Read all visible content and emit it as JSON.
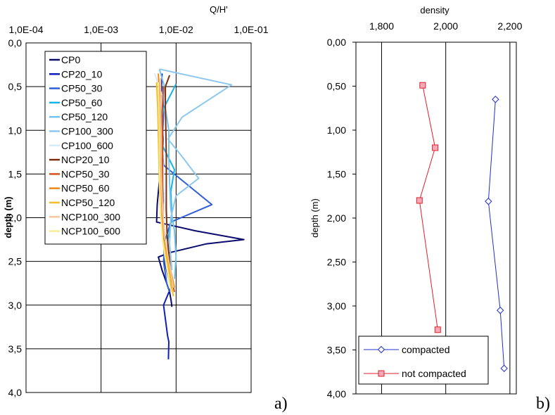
{
  "chart_data": [
    {
      "type": "line",
      "panel_letter": "a)",
      "xscale": "log",
      "xlabel": "Q/H'",
      "ylabel": "depth (m)",
      "xlim": [
        0.0001,
        0.1
      ],
      "ylim": [
        0,
        4
      ],
      "x_ticks": [
        "1,0E-04",
        "1,0E-03",
        "1,0E-02",
        "1,0E-01"
      ],
      "y_ticks": [
        "0,0",
        "0,5",
        "1,0",
        "1,5",
        "2,0",
        "2,5",
        "3,0",
        "3,5",
        "4,0"
      ],
      "legend_position": "top-left",
      "grid": true,
      "series": [
        {
          "name": "CP0",
          "color": "#0b0b6e",
          "points": [
            [
              0.0062,
              0.57
            ],
            [
              0.0062,
              0.85
            ],
            [
              0.0062,
              1.15
            ],
            [
              0.0061,
              1.5
            ],
            [
              0.0056,
              1.85
            ],
            [
              0.0055,
              2.05
            ],
            [
              0.018,
              2.15
            ],
            [
              0.08,
              2.25
            ],
            [
              0.025,
              2.3
            ],
            [
              0.0082,
              2.4
            ],
            [
              0.0058,
              2.45
            ],
            [
              0.0065,
              2.6
            ],
            [
              0.0075,
              2.75
            ],
            [
              0.0082,
              2.85
            ],
            [
              0.0086,
              2.95
            ],
            [
              0.0088,
              3.02
            ]
          ]
        },
        {
          "name": "CP20_10",
          "color": "#0f1fb8",
          "points": [
            [
              0.0065,
              0.35
            ],
            [
              0.0063,
              0.6
            ],
            [
              0.0065,
              0.9
            ],
            [
              0.0067,
              1.1
            ],
            [
              0.0065,
              1.45
            ],
            [
              0.0067,
              1.8
            ],
            [
              0.0065,
              2.0
            ],
            [
              0.0068,
              2.25
            ],
            [
              0.007,
              2.5
            ],
            [
              0.0085,
              2.8
            ],
            [
              0.0068,
              3.0
            ],
            [
              0.0073,
              3.2
            ],
            [
              0.0077,
              3.35
            ],
            [
              0.008,
              3.42
            ],
            [
              0.0079,
              3.62
            ]
          ]
        },
        {
          "name": "CP50_30",
          "color": "#2f5fd6",
          "points": [
            [
              0.0066,
              0.5
            ],
            [
              0.0068,
              0.8
            ],
            [
              0.0065,
              1.2
            ],
            [
              0.0068,
              1.4
            ],
            [
              0.03,
              1.85
            ],
            [
              0.0085,
              2.05
            ],
            [
              0.0072,
              2.25
            ],
            [
              0.0068,
              2.5
            ],
            [
              0.0075,
              2.75
            ],
            [
              0.0082,
              2.85
            ]
          ]
        },
        {
          "name": "CP50_60",
          "color": "#14b4e6",
          "points": [
            [
              0.01,
              0.47
            ],
            [
              0.0068,
              0.75
            ],
            [
              0.0058,
              1.05
            ],
            [
              0.0068,
              1.2
            ],
            [
              0.0095,
              1.45
            ],
            [
              0.0085,
              1.7
            ],
            [
              0.0088,
              2.0
            ],
            [
              0.0078,
              2.25
            ],
            [
              0.0075,
              2.45
            ],
            [
              0.0082,
              2.6
            ],
            [
              0.0085,
              2.75
            ]
          ]
        },
        {
          "name": "CP50_120",
          "color": "#74c4ee",
          "points": [
            [
              0.006,
              0.3
            ],
            [
              0.007,
              0.5
            ],
            [
              0.0072,
              0.75
            ],
            [
              0.008,
              1.0
            ],
            [
              0.008,
              1.3
            ],
            [
              0.0082,
              1.6
            ],
            [
              0.0085,
              1.9
            ],
            [
              0.0095,
              2.15
            ],
            [
              0.01,
              2.45
            ],
            [
              0.0095,
              2.7
            ]
          ]
        },
        {
          "name": "CP100_300",
          "color": "#8ec8ec",
          "points": [
            [
              0.006,
              0.3
            ],
            [
              0.055,
              0.48
            ],
            [
              0.012,
              0.85
            ],
            [
              0.0078,
              1.1
            ],
            [
              0.012,
              1.3
            ],
            [
              0.02,
              1.55
            ],
            [
              0.01,
              1.75
            ],
            [
              0.0085,
              2.0
            ],
            [
              0.0082,
              2.3
            ],
            [
              0.0088,
              2.6
            ]
          ]
        },
        {
          "name": "CP100_600",
          "color": "#d4ecf9",
          "points": [
            [
              0.0052,
              0.35
            ],
            [
              0.0065,
              0.6
            ],
            [
              0.0062,
              0.9
            ],
            [
              0.0065,
              1.2
            ],
            [
              0.0068,
              1.5
            ],
            [
              0.007,
              1.8
            ],
            [
              0.0075,
              2.1
            ],
            [
              0.0078,
              2.4
            ],
            [
              0.008,
              2.7
            ]
          ]
        },
        {
          "name": "NCP20_10",
          "color": "#7a3010",
          "points": [
            [
              0.0082,
              0.37
            ],
            [
              0.0072,
              0.5
            ],
            [
              0.0072,
              0.75
            ],
            [
              0.0073,
              1.0
            ],
            [
              0.0074,
              1.3
            ],
            [
              0.0074,
              1.6
            ],
            [
              0.0074,
              1.9
            ],
            [
              0.0076,
              2.2
            ],
            [
              0.0082,
              2.5
            ],
            [
              0.0086,
              2.75
            ]
          ]
        },
        {
          "name": "NCP50_30",
          "color": "#d4521c",
          "points": [
            [
              0.0068,
              0.5
            ],
            [
              0.0065,
              0.8
            ],
            [
              0.0066,
              1.1
            ],
            [
              0.0066,
              1.4
            ],
            [
              0.0066,
              1.7
            ],
            [
              0.0067,
              2.0
            ],
            [
              0.0072,
              2.3
            ],
            [
              0.0082,
              2.6
            ],
            [
              0.0095,
              2.85
            ]
          ]
        },
        {
          "name": "NCP50_60",
          "color": "#f08a18",
          "points": [
            [
              0.0058,
              0.35
            ],
            [
              0.006,
              0.6
            ],
            [
              0.0062,
              0.9
            ],
            [
              0.0062,
              1.2
            ],
            [
              0.0063,
              1.5
            ],
            [
              0.0064,
              1.8
            ],
            [
              0.0066,
              2.1
            ],
            [
              0.0075,
              2.4
            ],
            [
              0.0095,
              2.8
            ]
          ]
        },
        {
          "name": "NCP50_120",
          "color": "#f2be2a",
          "points": [
            [
              0.0055,
              0.45
            ],
            [
              0.0057,
              0.75
            ],
            [
              0.0058,
              1.05
            ],
            [
              0.0059,
              1.35
            ],
            [
              0.006,
              1.65
            ],
            [
              0.0062,
              1.95
            ],
            [
              0.0067,
              2.25
            ],
            [
              0.0078,
              2.55
            ],
            [
              0.0092,
              2.9
            ]
          ]
        },
        {
          "name": "NCP100_300",
          "color": "#f6c89c",
          "points": [
            [
              0.0062,
              0.4
            ],
            [
              0.0062,
              0.7
            ],
            [
              0.0063,
              1.0
            ],
            [
              0.0063,
              1.3
            ],
            [
              0.0064,
              1.6
            ],
            [
              0.0066,
              1.9
            ],
            [
              0.007,
              2.2
            ],
            [
              0.008,
              2.5
            ],
            [
              0.0092,
              2.8
            ]
          ]
        },
        {
          "name": "NCP100_600",
          "color": "#f8ec90",
          "points": [
            [
              0.0058,
              0.45
            ],
            [
              0.0059,
              0.75
            ],
            [
              0.006,
              1.05
            ],
            [
              0.006,
              1.35
            ],
            [
              0.0061,
              1.65
            ],
            [
              0.0062,
              1.95
            ],
            [
              0.0066,
              2.25
            ],
            [
              0.0074,
              2.55
            ],
            [
              0.0086,
              2.85
            ]
          ]
        }
      ]
    },
    {
      "type": "line",
      "panel_letter": "b)",
      "xlabel": "density",
      "ylabel": "depth (m)",
      "xlim": [
        1720,
        2220
      ],
      "ylim": [
        0,
        4
      ],
      "x_tick_values": [
        1800,
        2000,
        2200
      ],
      "x_ticks": [
        "1,800",
        "2,000",
        "2,200"
      ],
      "y_ticks": [
        "0,00",
        "0,50",
        "1,00",
        "1,50",
        "2,00",
        "2,50",
        "3,00",
        "3,50",
        "4,00"
      ],
      "legend_position": "bottom-left",
      "grid": true,
      "series": [
        {
          "name": "compacted",
          "color": "#1f2fd0",
          "marker": "diamond",
          "points": [
            [
              2155,
              0.65
            ],
            [
              2133,
              1.81
            ],
            [
              2170,
              3.05
            ],
            [
              2182,
              3.71
            ]
          ]
        },
        {
          "name": "not compacted",
          "color": "#e0202a",
          "marker": "square",
          "points": [
            [
              1928,
              0.49
            ],
            [
              1967,
              1.2
            ],
            [
              1918,
              1.8
            ],
            [
              1975,
              3.27
            ]
          ]
        }
      ]
    }
  ]
}
